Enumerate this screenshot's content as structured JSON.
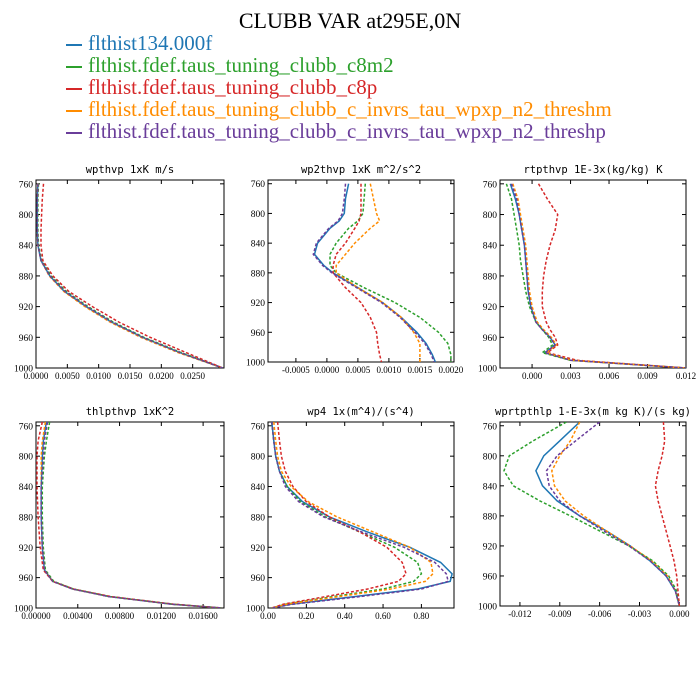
{
  "title": "CLUBB VAR at295E,0N",
  "colors": {
    "s0": "#1f77b4",
    "s1": "#2ca02c",
    "s2": "#d62728",
    "s3": "#ff8c00",
    "s4": "#6a3d9a"
  },
  "legend": [
    {
      "name": "flthist134.000f",
      "color": "#1f77b4"
    },
    {
      "name": "flthist.fdef.taus_tuning_clubb_c8m2",
      "color": "#2ca02c"
    },
    {
      "name": "flthist.fdef.taus_tuning_clubb_c8p",
      "color": "#d62728"
    },
    {
      "name": "flthist.fdef.taus_tuning_clubb_c_invrs_tau_wpxp_n2_threshm",
      "color": "#ff8c00"
    },
    {
      "name": "flthist.fdef.taus_tuning_clubb_c_invrs_tau_wpxp_n2_threshp",
      "color": "#6a3d9a"
    }
  ],
  "chart_data": [
    {
      "type": "line",
      "title": "wpthvp  1xK m/s",
      "xlim": [
        0.0,
        0.03
      ],
      "ylim": [
        1000,
        755
      ],
      "xticks": [
        "0.0000",
        "0.0050",
        "0.0100",
        "0.0150",
        "0.0200",
        "0.0250"
      ],
      "xtick_values": [
        0.0,
        0.005,
        0.01,
        0.015,
        0.02,
        0.025
      ],
      "yticks": [
        "760",
        "800",
        "840",
        "880",
        "920",
        "960",
        "1000"
      ],
      "y": [
        760,
        780,
        800,
        820,
        840,
        860,
        880,
        900,
        920,
        940,
        960,
        980,
        1000
      ],
      "series": [
        {
          "color_key": "s0",
          "dash": false,
          "x": [
            0.0003,
            0.0002,
            0.0002,
            0.0002,
            0.0003,
            0.0008,
            0.0022,
            0.0045,
            0.008,
            0.012,
            0.017,
            0.023,
            0.0298
          ]
        },
        {
          "color_key": "s1",
          "dash": true,
          "x": [
            0.0004,
            0.0003,
            0.0003,
            0.0003,
            0.0004,
            0.0009,
            0.0024,
            0.0048,
            0.0083,
            0.0123,
            0.0172,
            0.0232,
            0.0298
          ]
        },
        {
          "color_key": "s2",
          "dash": true,
          "x": [
            0.0012,
            0.001,
            0.0009,
            0.0008,
            0.0008,
            0.0011,
            0.0027,
            0.0052,
            0.009,
            0.0132,
            0.0182,
            0.024,
            0.0298
          ]
        },
        {
          "color_key": "s3",
          "dash": true,
          "x": [
            0.0003,
            0.0002,
            0.0002,
            0.0002,
            0.0003,
            0.0008,
            0.0021,
            0.0044,
            0.0078,
            0.0118,
            0.0167,
            0.0227,
            0.0298
          ]
        },
        {
          "color_key": "s4",
          "dash": true,
          "x": [
            0.0003,
            0.0002,
            0.0002,
            0.0002,
            0.0003,
            0.0008,
            0.0022,
            0.0046,
            0.0081,
            0.0121,
            0.017,
            0.023,
            0.0298
          ]
        }
      ]
    },
    {
      "type": "line",
      "title": "wp2thvp  1xK m^2/s^2",
      "xlim": [
        -0.00095,
        0.00205
      ],
      "ylim": [
        1000,
        755
      ],
      "xticks": [
        "-0.0005",
        "0.0000",
        "0.0005",
        "0.0010",
        "0.0015",
        "0.0020"
      ],
      "xtick_values": [
        -0.0005,
        0.0,
        0.0005,
        0.001,
        0.0015,
        0.002
      ],
      "yticks": [
        "760",
        "800",
        "840",
        "880",
        "920",
        "960",
        "1000"
      ],
      "y": [
        760,
        780,
        800,
        810,
        820,
        840,
        855,
        870,
        880,
        900,
        920,
        940,
        960,
        975,
        990,
        1000
      ],
      "series": [
        {
          "color_key": "s0",
          "dash": false,
          "x": [
            0.00035,
            0.0003,
            0.00028,
            0.0002,
            5e-05,
            -0.00015,
            -0.0002,
            -5e-05,
            0.0001,
            0.0005,
            0.0009,
            0.0012,
            0.00145,
            0.0016,
            0.0017,
            0.00175
          ]
        },
        {
          "color_key": "s1",
          "dash": true,
          "x": [
            0.00062,
            0.0006,
            0.00058,
            0.0005,
            0.00035,
            0.00015,
            5e-05,
            5e-05,
            0.00015,
            0.0006,
            0.0011,
            0.0015,
            0.0018,
            0.00195,
            0.002,
            0.002
          ]
        },
        {
          "color_key": "s2",
          "dash": true,
          "x": [
            0.00055,
            0.00055,
            0.00055,
            0.00052,
            0.00045,
            0.0003,
            0.00015,
            0.0001,
            0.0001,
            0.0003,
            0.00055,
            0.0007,
            0.0008,
            0.00082,
            0.00085,
            0.00088
          ]
        },
        {
          "color_key": "s3",
          "dash": true,
          "x": [
            0.0007,
            0.00075,
            0.0008,
            0.00085,
            0.0007,
            0.00045,
            0.0003,
            0.00015,
            0.00015,
            0.0005,
            0.0009,
            0.0012,
            0.0014,
            0.0015,
            0.0015,
            0.0015
          ]
        },
        {
          "color_key": "s4",
          "dash": true,
          "x": [
            0.0003,
            0.00028,
            0.00025,
            0.00018,
            3e-05,
            -0.00017,
            -0.00022,
            -7e-05,
            8e-05,
            0.00048,
            0.00088,
            0.00118,
            0.00142,
            0.00158,
            0.00168,
            0.00173
          ]
        }
      ]
    },
    {
      "type": "line",
      "title": "rtpthvp  1E-3x(kg/kg) K",
      "xlim": [
        -0.0025,
        0.012
      ],
      "ylim": [
        1000,
        755
      ],
      "xticks": [
        "0.000",
        "0.003",
        "0.006",
        "0.009",
        "0.012"
      ],
      "xtick_values": [
        0.0,
        0.003,
        0.006,
        0.009,
        0.012
      ],
      "yticks": [
        "760",
        "800",
        "840",
        "880",
        "920",
        "960",
        "1000"
      ],
      "y": [
        760,
        780,
        800,
        820,
        840,
        860,
        880,
        900,
        920,
        940,
        950,
        960,
        970,
        980,
        990,
        1000
      ],
      "series": [
        {
          "color_key": "s0",
          "dash": false,
          "x": [
            -0.0017,
            -0.0013,
            -0.001,
            -0.0008,
            -0.0006,
            -0.0005,
            -0.0004,
            -0.0003,
            -0.0001,
            0.0003,
            0.0008,
            0.0014,
            0.0018,
            0.001,
            0.003,
            0.012
          ]
        },
        {
          "color_key": "s1",
          "dash": true,
          "x": [
            -0.002,
            -0.0016,
            -0.0014,
            -0.0012,
            -0.001,
            -0.0009,
            -0.0007,
            -0.0005,
            -0.0002,
            0.0003,
            0.0008,
            0.0013,
            0.0016,
            0.0008,
            0.003,
            0.012
          ]
        },
        {
          "color_key": "s2",
          "dash": true,
          "x": [
            0.0005,
            0.0012,
            0.002,
            0.0018,
            0.0014,
            0.0011,
            0.0009,
            0.0008,
            0.0008,
            0.0011,
            0.0014,
            0.0018,
            0.002,
            0.0012,
            0.0035,
            0.012
          ]
        },
        {
          "color_key": "s3",
          "dash": true,
          "x": [
            -0.0015,
            -0.0011,
            -0.0009,
            -0.0007,
            -0.0005,
            -0.0004,
            -0.0003,
            -0.0002,
            0.0,
            0.0004,
            0.0009,
            0.0015,
            0.0019,
            0.0011,
            0.0031,
            0.012
          ]
        },
        {
          "color_key": "s4",
          "dash": true,
          "x": [
            -0.0016,
            -0.0012,
            -0.001,
            -0.0008,
            -0.0006,
            -0.0005,
            -0.0004,
            -0.0003,
            -0.0001,
            0.0003,
            0.0008,
            0.0014,
            0.0018,
            0.001,
            0.003,
            0.012
          ]
        }
      ]
    },
    {
      "type": "line",
      "title": "thlpthvp  1xK^2",
      "xlim": [
        0.0,
        0.018
      ],
      "ylim": [
        1000,
        755
      ],
      "xticks": [
        "0.00000",
        "0.00400",
        "0.00800",
        "0.01200",
        "0.01600"
      ],
      "xtick_values": [
        0.0,
        0.004,
        0.008,
        0.012,
        0.016
      ],
      "yticks": [
        "760",
        "800",
        "840",
        "880",
        "920",
        "960",
        "1000"
      ],
      "y": [
        755,
        780,
        800,
        840,
        880,
        920,
        950,
        965,
        975,
        985,
        995,
        1000
      ],
      "series": [
        {
          "color_key": "s0",
          "dash": false,
          "x": [
            0.001,
            0.0007,
            0.0006,
            0.0005,
            0.0005,
            0.0006,
            0.0008,
            0.0016,
            0.0035,
            0.007,
            0.013,
            0.0178
          ]
        },
        {
          "color_key": "s1",
          "dash": true,
          "x": [
            0.0013,
            0.001,
            0.0008,
            0.0006,
            0.0006,
            0.0007,
            0.0009,
            0.0017,
            0.0036,
            0.0071,
            0.0131,
            0.0178
          ]
        },
        {
          "color_key": "s2",
          "dash": true,
          "x": [
            0.0006,
            0.0002,
            0.0001,
            0.0001,
            0.0002,
            0.0004,
            0.0007,
            0.0016,
            0.0036,
            0.0072,
            0.0132,
            0.0178
          ]
        },
        {
          "color_key": "s3",
          "dash": true,
          "x": [
            0.0009,
            0.0006,
            0.0005,
            0.0005,
            0.0005,
            0.0006,
            0.0008,
            0.0016,
            0.0035,
            0.007,
            0.013,
            0.0178
          ]
        },
        {
          "color_key": "s4",
          "dash": true,
          "x": [
            0.0011,
            0.0008,
            0.0007,
            0.0005,
            0.0005,
            0.0006,
            0.0008,
            0.0016,
            0.0035,
            0.007,
            0.013,
            0.0178
          ]
        }
      ]
    },
    {
      "type": "line",
      "title": "wp4  1x(m^4)/(s^4)",
      "xlim": [
        0.0,
        0.97
      ],
      "ylim": [
        1000,
        755
      ],
      "xticks": [
        "0.00",
        "0.20",
        "0.40",
        "0.60",
        "0.80"
      ],
      "xtick_values": [
        0.0,
        0.2,
        0.4,
        0.6,
        0.8
      ],
      "yticks": [
        "760",
        "800",
        "840",
        "880",
        "920",
        "960",
        "1000"
      ],
      "y": [
        755,
        780,
        800,
        820,
        840,
        860,
        880,
        900,
        920,
        940,
        955,
        965,
        975,
        985,
        995,
        1000
      ],
      "series": [
        {
          "color_key": "s0",
          "dash": false,
          "x": [
            0.02,
            0.03,
            0.04,
            0.06,
            0.1,
            0.18,
            0.32,
            0.52,
            0.74,
            0.9,
            0.96,
            0.95,
            0.78,
            0.45,
            0.12,
            0.02
          ]
        },
        {
          "color_key": "s1",
          "dash": true,
          "x": [
            0.02,
            0.03,
            0.04,
            0.06,
            0.1,
            0.17,
            0.3,
            0.48,
            0.66,
            0.78,
            0.8,
            0.76,
            0.6,
            0.34,
            0.09,
            0.02
          ]
        },
        {
          "color_key": "s2",
          "dash": true,
          "x": [
            0.05,
            0.06,
            0.07,
            0.09,
            0.13,
            0.2,
            0.32,
            0.48,
            0.62,
            0.7,
            0.72,
            0.68,
            0.52,
            0.3,
            0.08,
            0.02
          ]
        },
        {
          "color_key": "s3",
          "dash": true,
          "x": [
            0.03,
            0.04,
            0.05,
            0.07,
            0.12,
            0.21,
            0.36,
            0.55,
            0.74,
            0.85,
            0.86,
            0.82,
            0.64,
            0.37,
            0.1,
            0.02
          ]
        },
        {
          "color_key": "s4",
          "dash": true,
          "x": [
            0.02,
            0.03,
            0.04,
            0.06,
            0.09,
            0.16,
            0.29,
            0.49,
            0.71,
            0.87,
            0.93,
            0.94,
            0.8,
            0.48,
            0.13,
            0.02
          ]
        }
      ]
    },
    {
      "type": "line",
      "title": "wprtpthlp  1-E-3x(m kg K)/(s kg)",
      "xlim": [
        -0.0135,
        0.0005
      ],
      "ylim": [
        1000,
        755
      ],
      "xticks": [
        "-0.012",
        "-0.009",
        "-0.006",
        "-0.003",
        "0.000"
      ],
      "xtick_values": [
        -0.012,
        -0.009,
        -0.006,
        -0.003,
        0.0
      ],
      "yticks": [
        "760",
        "800",
        "840",
        "880",
        "920",
        "960",
        "1000"
      ],
      "y": [
        755,
        780,
        800,
        820,
        840,
        860,
        880,
        900,
        920,
        940,
        960,
        980,
        1000
      ],
      "series": [
        {
          "color_key": "s0",
          "dash": false,
          "x": [
            -0.0075,
            -0.009,
            -0.0102,
            -0.0108,
            -0.0103,
            -0.0092,
            -0.0075,
            -0.0055,
            -0.0037,
            -0.0022,
            -0.001,
            -0.0003,
            0.0
          ]
        },
        {
          "color_key": "s1",
          "dash": true,
          "x": [
            -0.0085,
            -0.011,
            -0.0128,
            -0.0132,
            -0.0125,
            -0.0105,
            -0.0082,
            -0.006,
            -0.0038,
            -0.002,
            -0.0008,
            -0.0002,
            0.0
          ]
        },
        {
          "color_key": "s2",
          "dash": true,
          "x": [
            -0.0012,
            -0.0011,
            -0.0013,
            -0.0016,
            -0.0018,
            -0.0016,
            -0.0013,
            -0.001,
            -0.0007,
            -0.0004,
            -0.0002,
            -0.0001,
            0.0
          ]
        },
        {
          "color_key": "s3",
          "dash": true,
          "x": [
            -0.0075,
            -0.0082,
            -0.009,
            -0.0096,
            -0.0094,
            -0.0086,
            -0.0072,
            -0.0055,
            -0.0037,
            -0.0021,
            -0.0009,
            -0.0003,
            0.0
          ]
        },
        {
          "color_key": "s4",
          "dash": true,
          "x": [
            -0.006,
            -0.0078,
            -0.0092,
            -0.01,
            -0.0098,
            -0.009,
            -0.0075,
            -0.0057,
            -0.0038,
            -0.0022,
            -0.001,
            -0.0003,
            0.0
          ]
        }
      ]
    }
  ]
}
